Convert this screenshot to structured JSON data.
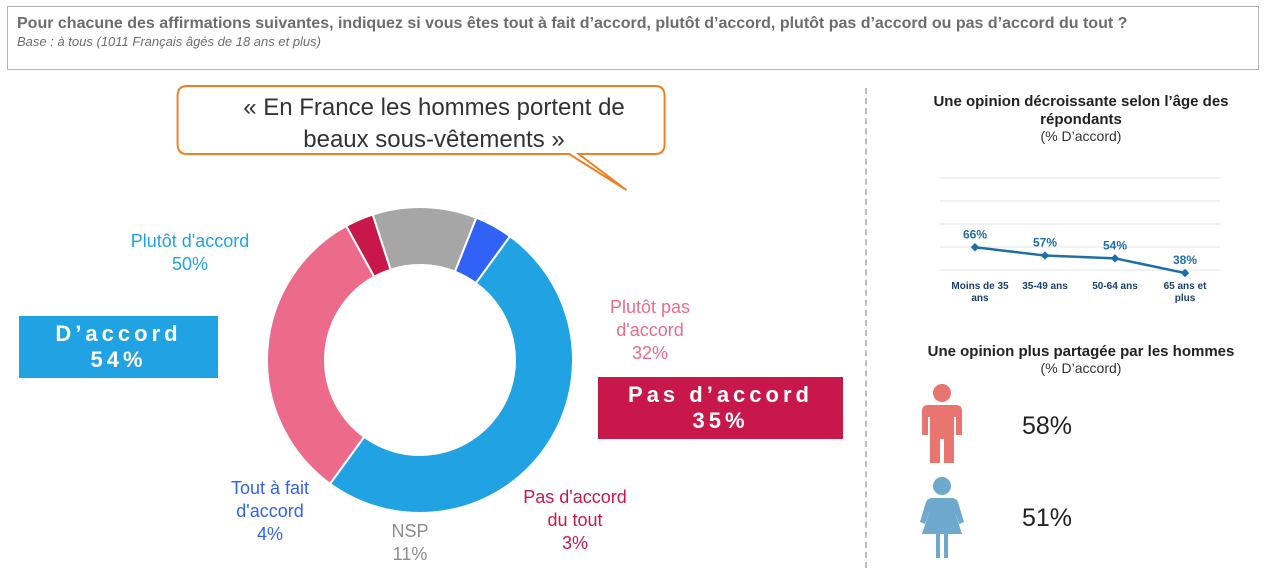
{
  "header": {
    "question": "Pour chacune des affirmations suivantes, indiquez si vous êtes tout à fait d’accord, plutôt d’accord, plutôt pas d’accord ou pas d’accord du tout  ?",
    "base": "Base : à tous (1011 Français âgés de 18 ans et plus)"
  },
  "quote": {
    "line1": "« En France les hommes portent de",
    "line2": "beaux sous-vêtements »"
  },
  "summary": {
    "agree": {
      "label": "D’accord",
      "value": "54%",
      "color": "#21a3e3"
    },
    "disagree": {
      "label": "Pas d’accord",
      "value": "35%",
      "color": "#c8174a"
    }
  },
  "donut_labels": {
    "plutot_accord": {
      "line1": "Plutôt d'accord",
      "value": "50%"
    },
    "plutot_pas": {
      "line1": "Plutôt pas",
      "line2": "d'accord",
      "value": "32%"
    },
    "pas_du_tout": {
      "line1": "Pas d'accord",
      "line2": "du tout",
      "value": "3%"
    },
    "nsp": {
      "line1": "NSP",
      "value": "11%"
    },
    "tout_a_fait": {
      "line1": "Tout à fait",
      "line2": "d'accord",
      "value": "4%"
    }
  },
  "age_panel": {
    "title": "Une opinion décroissante selon l’âge des répondants",
    "subtitle": "(% D’accord)"
  },
  "gender_panel": {
    "title": "Une opinion plus partagée par les hommes",
    "subtitle": "(% D’accord)",
    "men_value": "58%",
    "women_value": "51%",
    "men_icon": "man-icon",
    "women_icon": "woman-icon",
    "men_color": "#e87570",
    "women_color": "#6fa8cd"
  },
  "chart_data": [
    {
      "type": "pie",
      "categories": [
        "Plutôt d'accord",
        "Plutôt pas d'accord",
        "Pas d'accord du tout",
        "NSP",
        "Tout à fait d'accord"
      ],
      "values": [
        50,
        32,
        3,
        11,
        4
      ],
      "colors": [
        "#21a3e3",
        "#ec6b8a",
        "#c8174a",
        "#a6a6a6",
        "#2f62f5"
      ]
    },
    {
      "type": "line",
      "categories": [
        "Moins de 35 ans",
        "35-49 ans",
        "50-64 ans",
        "65 ans et plus"
      ],
      "values": [
        66,
        57,
        54,
        38
      ],
      "data_labels": [
        "66%",
        "57%",
        "54%",
        "38%"
      ],
      "ylim": [
        0,
        100
      ],
      "color": "#1f6fa6",
      "grid": true
    }
  ]
}
